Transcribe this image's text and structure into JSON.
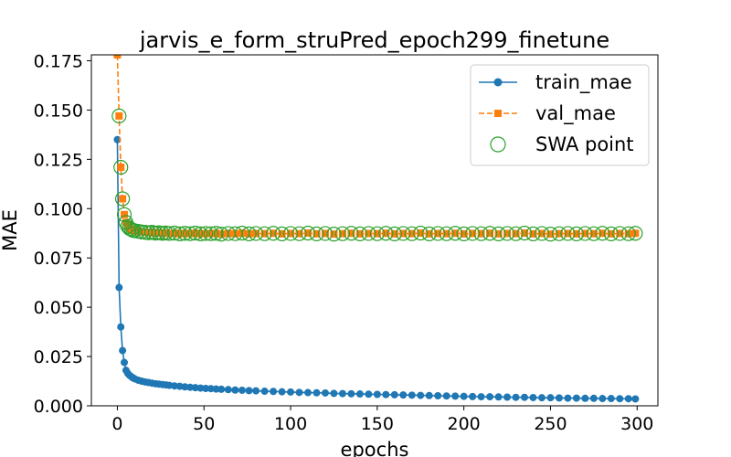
{
  "chart_data": {
    "type": "line",
    "title": "jarvis_e_form_struPred_epoch299_finetune",
    "xlabel": "epochs",
    "ylabel": "MAE",
    "xlim": [
      -15,
      312
    ],
    "ylim": [
      0,
      0.178
    ],
    "xticks": [
      0,
      50,
      100,
      150,
      200,
      250,
      300
    ],
    "yticks": [
      0.0,
      0.025,
      0.05,
      0.075,
      0.1,
      0.125,
      0.15,
      0.175
    ],
    "ytick_labels": [
      "0.000",
      "0.025",
      "0.050",
      "0.075",
      "0.100",
      "0.125",
      "0.150",
      "0.175"
    ],
    "legend_position": "top-right",
    "grid": false,
    "series": [
      {
        "name": "train_mae",
        "color": "#1f77b4",
        "style": "solid",
        "marker": "circle",
        "x": [
          0,
          1,
          2,
          3,
          4,
          5,
          6,
          7,
          8,
          9,
          10,
          12,
          14,
          16,
          18,
          20,
          22,
          24,
          26,
          28,
          30,
          33,
          36,
          39,
          42,
          45,
          48,
          51,
          54,
          57,
          60,
          64,
          68,
          72,
          76,
          80,
          85,
          90,
          95,
          100,
          105,
          110,
          115,
          120,
          125,
          130,
          135,
          140,
          145,
          150,
          155,
          160,
          165,
          170,
          175,
          180,
          185,
          190,
          195,
          200,
          205,
          210,
          215,
          220,
          225,
          230,
          235,
          240,
          245,
          250,
          255,
          260,
          265,
          270,
          275,
          280,
          285,
          290,
          295,
          299
        ],
        "y": [
          0.135,
          0.06,
          0.04,
          0.028,
          0.022,
          0.018,
          0.0165,
          0.0155,
          0.0148,
          0.0142,
          0.0137,
          0.013,
          0.0125,
          0.0121,
          0.0118,
          0.0115,
          0.0112,
          0.011,
          0.0108,
          0.0106,
          0.0104,
          0.0101,
          0.0099,
          0.0096,
          0.0094,
          0.0092,
          0.009,
          0.0088,
          0.0087,
          0.0085,
          0.0084,
          0.0082,
          0.008,
          0.0079,
          0.0077,
          0.0076,
          0.0074,
          0.0073,
          0.0071,
          0.007,
          0.0068,
          0.0067,
          0.0066,
          0.0065,
          0.0063,
          0.0062,
          0.0061,
          0.006,
          0.0059,
          0.0058,
          0.0057,
          0.0056,
          0.0055,
          0.0054,
          0.0053,
          0.0052,
          0.0051,
          0.005,
          0.0049,
          0.0048,
          0.0047,
          0.0046,
          0.0046,
          0.0045,
          0.0044,
          0.0043,
          0.0043,
          0.0042,
          0.0041,
          0.0041,
          0.004,
          0.0039,
          0.0039,
          0.0038,
          0.0038,
          0.0037,
          0.0037,
          0.0036,
          0.0036,
          0.0035
        ]
      },
      {
        "name": "val_mae",
        "color": "#ff7f0e",
        "style": "dashed",
        "marker": "square",
        "x": [
          0,
          1,
          2,
          3,
          4,
          5,
          6,
          7,
          8,
          9,
          10,
          12,
          14,
          16,
          18,
          20,
          22,
          24,
          26,
          28,
          30,
          33,
          36,
          39,
          42,
          45,
          48,
          51,
          54,
          57,
          60,
          64,
          68,
          72,
          76,
          80,
          85,
          90,
          95,
          100,
          105,
          110,
          115,
          120,
          125,
          130,
          135,
          140,
          145,
          150,
          155,
          160,
          165,
          170,
          175,
          180,
          185,
          190,
          195,
          200,
          205,
          210,
          215,
          220,
          225,
          230,
          235,
          240,
          245,
          250,
          255,
          260,
          265,
          270,
          275,
          280,
          285,
          290,
          295,
          299
        ],
        "y": [
          0.178,
          0.147,
          0.121,
          0.105,
          0.097,
          0.093,
          0.091,
          0.09,
          0.0895,
          0.089,
          0.0888,
          0.0885,
          0.0882,
          0.088,
          0.0878,
          0.088,
          0.0876,
          0.0878,
          0.0875,
          0.0877,
          0.0874,
          0.0876,
          0.0872,
          0.0875,
          0.0873,
          0.0876,
          0.0872,
          0.0874,
          0.0873,
          0.0875,
          0.0871,
          0.0874,
          0.0873,
          0.0876,
          0.0872,
          0.0874,
          0.0873,
          0.0875,
          0.0872,
          0.0874,
          0.0873,
          0.0876,
          0.0872,
          0.0874,
          0.0871,
          0.0873,
          0.0875,
          0.0872,
          0.0874,
          0.0873,
          0.0875,
          0.0872,
          0.0874,
          0.0873,
          0.0876,
          0.0872,
          0.0874,
          0.0873,
          0.0875,
          0.0872,
          0.0874,
          0.0873,
          0.0875,
          0.0872,
          0.0874,
          0.0873,
          0.0876,
          0.0872,
          0.0874,
          0.0871,
          0.0873,
          0.0874,
          0.0872,
          0.0874,
          0.0873,
          0.0875,
          0.0872,
          0.0874,
          0.0873,
          0.0875
        ]
      },
      {
        "name": "SWA point",
        "color": "#2ca02c",
        "style": "none",
        "marker": "open-circle",
        "x": [
          1,
          2,
          3,
          4,
          5,
          6,
          7,
          8,
          9,
          10,
          12,
          14,
          16,
          18,
          20,
          22,
          24,
          26,
          28,
          30,
          33,
          36,
          39,
          42,
          45,
          48,
          51,
          54,
          57,
          60,
          64,
          68,
          72,
          76,
          80,
          85,
          90,
          95,
          100,
          105,
          110,
          115,
          120,
          125,
          130,
          135,
          140,
          145,
          150,
          155,
          160,
          165,
          170,
          175,
          180,
          185,
          190,
          195,
          200,
          205,
          210,
          215,
          220,
          225,
          230,
          235,
          240,
          245,
          250,
          255,
          260,
          265,
          270,
          275,
          280,
          285,
          290,
          295,
          299
        ],
        "y": [
          0.147,
          0.121,
          0.105,
          0.097,
          0.093,
          0.091,
          0.09,
          0.0895,
          0.089,
          0.0888,
          0.0885,
          0.0882,
          0.088,
          0.0878,
          0.088,
          0.0876,
          0.0878,
          0.0875,
          0.0877,
          0.0874,
          0.0876,
          0.0872,
          0.0875,
          0.0873,
          0.0876,
          0.0872,
          0.0874,
          0.0873,
          0.0875,
          0.0871,
          0.0874,
          0.0873,
          0.0876,
          0.0872,
          0.0874,
          0.0873,
          0.0875,
          0.0872,
          0.0874,
          0.0873,
          0.0876,
          0.0872,
          0.0874,
          0.0871,
          0.0873,
          0.0875,
          0.0872,
          0.0874,
          0.0873,
          0.0875,
          0.0872,
          0.0874,
          0.0873,
          0.0876,
          0.0872,
          0.0874,
          0.0873,
          0.0875,
          0.0872,
          0.0874,
          0.0873,
          0.0875,
          0.0872,
          0.0874,
          0.0873,
          0.0876,
          0.0872,
          0.0874,
          0.0871,
          0.0873,
          0.0874,
          0.0872,
          0.0874,
          0.0873,
          0.0875,
          0.0872,
          0.0874,
          0.0873,
          0.0875
        ]
      }
    ]
  }
}
